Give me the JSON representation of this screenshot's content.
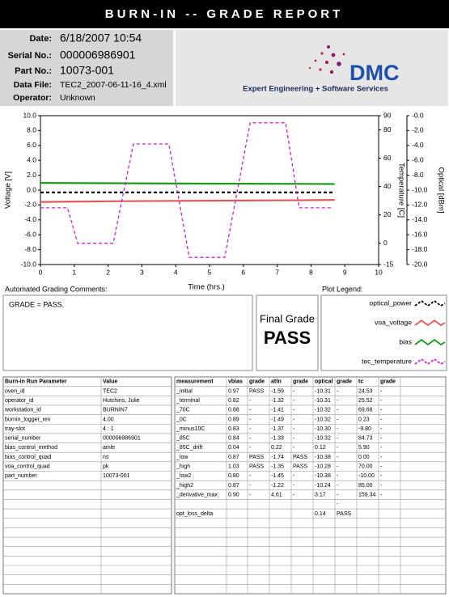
{
  "header": {
    "title": "BURN-IN -- GRADE REPORT"
  },
  "info": {
    "rows": [
      {
        "label": "Date:",
        "value": "6/18/2007  10:54"
      },
      {
        "label": "Serial No.:",
        "value": "000006986901"
      },
      {
        "label": "Part No.:",
        "value": "10073-001"
      },
      {
        "label": "Data File:",
        "value": "TEC2_2007-06-11-16_4.xml"
      },
      {
        "label": "Operator:",
        "value": "Unknown"
      }
    ]
  },
  "logo": {
    "name": "DMC",
    "tagline": "Expert Engineering + Software Services"
  },
  "chart_data": {
    "type": "line",
    "xlabel": "Time (hrs.)",
    "ylabel": "Voltage [V]",
    "y2label": "Temperature [C]",
    "y3label": "Optical [dBm]",
    "xlim": [
      0,
      10
    ],
    "xticks": [
      0,
      1,
      2,
      3,
      4,
      5,
      6,
      7,
      8,
      9,
      10
    ],
    "ylim": [
      -10,
      10
    ],
    "yticks": [
      {
        "value": 10,
        "label": "10.0"
      },
      {
        "value": 8,
        "label": "8.0"
      },
      {
        "value": 6,
        "label": "6.0"
      },
      {
        "value": 4,
        "label": "4.0"
      },
      {
        "value": 2,
        "label": "2.0"
      },
      {
        "value": 0,
        "label": "0.0"
      },
      {
        "value": -2,
        "label": "-2.0"
      },
      {
        "value": -4,
        "label": "-4.0"
      },
      {
        "value": -6,
        "label": "-6.0"
      },
      {
        "value": -8,
        "label": "-8.0"
      },
      {
        "value": -10,
        "label": "-10.0"
      }
    ],
    "y2lim": [
      -15,
      90
    ],
    "y2ticks": [
      90,
      80,
      60,
      40,
      20,
      0,
      -15
    ],
    "y3lim": [
      -20,
      0
    ],
    "y3ticks": [
      {
        "value": 0,
        "label": "-0.0"
      },
      {
        "value": -2,
        "label": "-2.0"
      },
      {
        "value": -4,
        "label": "-4.0"
      },
      {
        "value": -6,
        "label": "-6.0"
      },
      {
        "value": -8,
        "label": "-8.0"
      },
      {
        "value": -10,
        "label": "-10.0"
      },
      {
        "value": -12,
        "label": "-12.0"
      },
      {
        "value": -14,
        "label": "-14.0"
      },
      {
        "value": -16,
        "label": "-16.0"
      },
      {
        "value": -18,
        "label": "-18.0"
      },
      {
        "value": -20,
        "label": "-20.0"
      }
    ],
    "series": [
      {
        "name": "optical_power",
        "color": "#000000",
        "dashed": true,
        "axis": "y3",
        "x": [
          0,
          2,
          4,
          6,
          8,
          8.7
        ],
        "values": [
          -10.31,
          -10.32,
          -10.32,
          -10.3,
          -10.32,
          -10.31
        ]
      },
      {
        "name": "voa_voltage",
        "color": "#e05a5a",
        "dashed": false,
        "axis": "y",
        "x": [
          0,
          2,
          4,
          6,
          8,
          8.7
        ],
        "values": [
          -1.59,
          -1.5,
          -1.45,
          -1.4,
          -1.35,
          -1.32
        ]
      },
      {
        "name": "bias",
        "color": "#1a9a1a",
        "dashed": false,
        "axis": "y",
        "x": [
          0,
          2,
          4,
          6,
          8,
          8.7
        ],
        "values": [
          0.97,
          0.92,
          0.88,
          0.86,
          0.84,
          0.82
        ]
      },
      {
        "name": "tec_temperature",
        "color": "#d020d0",
        "dashed": true,
        "axis": "y2",
        "x": [
          0,
          0.8,
          1.1,
          2.15,
          2.75,
          3.8,
          4.4,
          5.45,
          6.2,
          7.25,
          7.65,
          8.65
        ],
        "values": [
          25,
          25,
          0,
          0,
          70,
          70,
          -10,
          -10,
          85,
          85,
          25,
          25
        ]
      }
    ]
  },
  "comments": {
    "label": "Automated Grading Comments:",
    "text": "GRADE = PASS."
  },
  "final_grade": {
    "label": "Final Grade",
    "value": "PASS"
  },
  "legend": {
    "label": "Plot Legend:"
  },
  "params_table": {
    "columns": [
      "Burn-in Run Parameter",
      "Value"
    ],
    "rows": [
      [
        "oven_id",
        "TEC2"
      ],
      [
        "operator_id",
        "Hutchins, Julie"
      ],
      [
        "workstation_id",
        "BURNIN7"
      ],
      [
        "burnin_logger_rev",
        "4.00"
      ],
      [
        "tray-slot",
        "4 : 1"
      ],
      [
        "serial_number",
        "000006986901"
      ],
      [
        "bias_control_method",
        "amle"
      ],
      [
        "bias_control_quad",
        "ns"
      ],
      [
        "voa_control_quad",
        "pk"
      ],
      [
        "part_number",
        "10073-001"
      ]
    ]
  },
  "measurements_table": {
    "columns": [
      "measurement",
      "vbias",
      "grade",
      "attn",
      "grade",
      "optical",
      "grade",
      "tc",
      "grade"
    ],
    "rows": [
      [
        "_initial",
        "0.97",
        "PASS",
        "-1.59",
        "-",
        "-10.31",
        "-",
        "24.53",
        "-"
      ],
      [
        "_terminal",
        "0.82",
        "-",
        "-1.32",
        "-",
        "-10.31",
        "-",
        "25.52",
        "-"
      ],
      [
        "_70C",
        "0.88",
        "-",
        "-1.41",
        "-",
        "-10.32",
        "-",
        "69.66",
        "-"
      ],
      [
        "_0C",
        "0.89",
        "-",
        "-1.49",
        "-",
        "-10.32",
        "-",
        "0.23",
        "-"
      ],
      [
        "_minus10C",
        "0.83",
        "-",
        "-1.37",
        "-",
        "-10.30",
        "-",
        "-9.80",
        "-"
      ],
      [
        "_85C",
        "0.84",
        "-",
        "-1.33",
        "-",
        "-10.32",
        "-",
        "84.73",
        "-"
      ],
      [
        "_85C_drift",
        "0.04",
        "-",
        "0.22",
        "-",
        "0.12",
        "-",
        "5.90",
        "-"
      ],
      [
        "_low",
        "0.87",
        "PASS",
        "-1.74",
        "PASS",
        "-10.38",
        "-",
        "0.00",
        "-"
      ],
      [
        "_high",
        "1.03",
        "PASS",
        "-1.35",
        "PASS",
        "-10.28",
        "-",
        "70.00",
        "-"
      ],
      [
        "_low2",
        "0.80",
        "-",
        "-1.45",
        "-",
        "-10.38",
        "-",
        "-10.00",
        "-"
      ],
      [
        "_high2",
        "0.87",
        "-",
        "-1.22",
        "-",
        "-10.24",
        "-",
        "85.00",
        "-"
      ],
      [
        "_derivative_max",
        "0.90",
        "-",
        "4.61",
        "-",
        "3.17",
        "-",
        "159.34",
        "-"
      ],
      [
        null,
        null,
        null,
        null,
        null,
        null,
        "-",
        null,
        null
      ],
      [
        "opt_loss_delta",
        null,
        null,
        null,
        null,
        "0.14",
        "PASS",
        null,
        null
      ]
    ]
  }
}
